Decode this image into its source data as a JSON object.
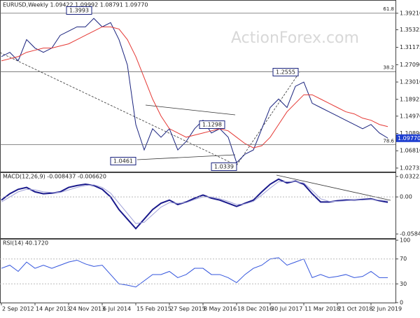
{
  "header": {
    "title": "EURUSD,Weekly 1.09422 1.09992 1.08791 1.09770",
    "watermark": "ActionForex.com"
  },
  "chart_data": [
    {
      "type": "line",
      "ylim": [
        1.019,
        1.42
      ],
      "yticks": [
        {
          "value": 1.3921,
          "label": "1.39210"
        },
        1.35325,
        1.31175,
        {
          "value": 1.2709,
          "label": "1.27090"
        },
        {
          "value": 1.2301,
          "label": "1.23010"
        },
        1.18925,
        {
          "value": 1.1497,
          "label": "1.14970"
        },
        {
          "value": 1.1089,
          "label": "1.10890"
        },
        {
          "value": 1.0681,
          "label": "1.06810"
        },
        1.02735
      ],
      "series": [
        {
          "name": "Close",
          "color": "#1a237e",
          "values": [
            1.29,
            1.3,
            1.28,
            1.33,
            1.31,
            1.3,
            1.31,
            1.34,
            1.35,
            1.36,
            1.36,
            1.38,
            1.36,
            1.37,
            1.33,
            1.27,
            1.13,
            1.07,
            1.12,
            1.1,
            1.12,
            1.07,
            1.09,
            1.12,
            1.14,
            1.11,
            1.12,
            1.1,
            1.04,
            1.06,
            1.07,
            1.12,
            1.17,
            1.19,
            1.17,
            1.22,
            1.23,
            1.18,
            1.17,
            1.16,
            1.15,
            1.14,
            1.13,
            1.12,
            1.13,
            1.11,
            1.098
          ]
        },
        {
          "name": "SMA",
          "color": "#e53935",
          "values": [
            1.28,
            1.285,
            1.29,
            1.3,
            1.305,
            1.31,
            1.31,
            1.315,
            1.32,
            1.33,
            1.34,
            1.35,
            1.36,
            1.36,
            1.355,
            1.33,
            1.29,
            1.24,
            1.19,
            1.15,
            1.12,
            1.11,
            1.1,
            1.105,
            1.11,
            1.115,
            1.12,
            1.115,
            1.1,
            1.085,
            1.075,
            1.08,
            1.1,
            1.13,
            1.16,
            1.18,
            1.2,
            1.2,
            1.19,
            1.18,
            1.17,
            1.16,
            1.155,
            1.145,
            1.14,
            1.13,
            1.125
          ]
        }
      ],
      "fib_levels": [
        {
          "name": "61.8",
          "value": 1.3921
        },
        {
          "name": "38.2",
          "value": 1.2545
        },
        {
          "name": "78.6",
          "value": 1.0827
        }
      ],
      "price_labels": [
        1.3993,
        1.2555,
        1.0461,
        1.1298,
        1.0339
      ],
      "last_price": {
        "value": 1.0977,
        "label": "1.09770",
        "color": "#1f3fd0"
      }
    },
    {
      "type": "line",
      "title": "MACD(12,26,9) -0.008437 -0.006620",
      "ylim": [
        -0.065,
        0.0377
      ],
      "yticks": [
        0.032235,
        {
          "value": 0,
          "label": "0.00"
        },
        -0.058434
      ],
      "series": [
        {
          "name": "MACD",
          "color": "#1a1a8c",
          "values": [
            -0.005,
            0.005,
            0.012,
            0.015,
            0.008,
            0.005,
            0.006,
            0.008,
            0.015,
            0.018,
            0.02,
            0.018,
            0.012,
            0.0,
            -0.02,
            -0.035,
            -0.05,
            -0.035,
            -0.02,
            -0.01,
            -0.005,
            -0.012,
            -0.008,
            -0.002,
            0.003,
            -0.002,
            -0.005,
            -0.01,
            -0.015,
            -0.01,
            -0.005,
            0.008,
            0.02,
            0.028,
            0.022,
            0.025,
            0.02,
            0.005,
            -0.008,
            -0.008,
            -0.006,
            -0.005,
            -0.005,
            -0.004,
            -0.003,
            -0.006,
            -0.0084
          ]
        },
        {
          "name": "Signal",
          "color": "#9fa0d8",
          "values": [
            -0.008,
            0.0,
            0.008,
            0.012,
            0.011,
            0.008,
            0.007,
            0.007,
            0.011,
            0.015,
            0.018,
            0.019,
            0.015,
            0.006,
            -0.01,
            -0.026,
            -0.042,
            -0.04,
            -0.028,
            -0.016,
            -0.009,
            -0.01,
            -0.009,
            -0.004,
            0.0,
            0.0,
            -0.003,
            -0.007,
            -0.012,
            -0.011,
            -0.007,
            0.003,
            0.014,
            0.024,
            0.024,
            0.024,
            0.022,
            0.01,
            -0.003,
            -0.007,
            -0.007,
            -0.006,
            -0.005,
            -0.005,
            -0.004,
            -0.005,
            -0.0066
          ]
        }
      ]
    },
    {
      "type": "line",
      "title": "RSI(14) 40.1720",
      "ylim": [
        0,
        100
      ],
      "yticks": [
        100,
        70,
        30,
        0
      ],
      "categories": [
        "2 Sep 2012",
        null,
        null,
        null,
        "14 Apr 2013",
        null,
        null,
        null,
        "24 Nov 2013",
        null,
        null,
        null,
        "6 Jul 2014",
        null,
        null,
        null,
        "15 Feb 2015",
        null,
        null,
        null,
        "27 Sep 2015",
        null,
        null,
        null,
        "8 May 2016",
        null,
        null,
        null,
        "18 Dec 2016",
        null,
        null,
        null,
        "30 Jul 2017",
        null,
        null,
        null,
        "11 Mar 2018",
        null,
        null,
        null,
        "21 Oct 2018",
        null,
        null,
        null,
        "2 Jun 2019",
        null,
        null
      ],
      "series": [
        {
          "name": "RSI",
          "color": "#3355dd",
          "values": [
            55,
            60,
            50,
            65,
            55,
            60,
            55,
            60,
            65,
            68,
            62,
            58,
            60,
            45,
            30,
            28,
            25,
            35,
            45,
            45,
            50,
            40,
            45,
            55,
            55,
            45,
            45,
            40,
            32,
            45,
            55,
            60,
            70,
            72,
            60,
            65,
            70,
            40,
            45,
            40,
            42,
            45,
            40,
            42,
            50,
            40,
            40
          ]
        }
      ]
    }
  ]
}
